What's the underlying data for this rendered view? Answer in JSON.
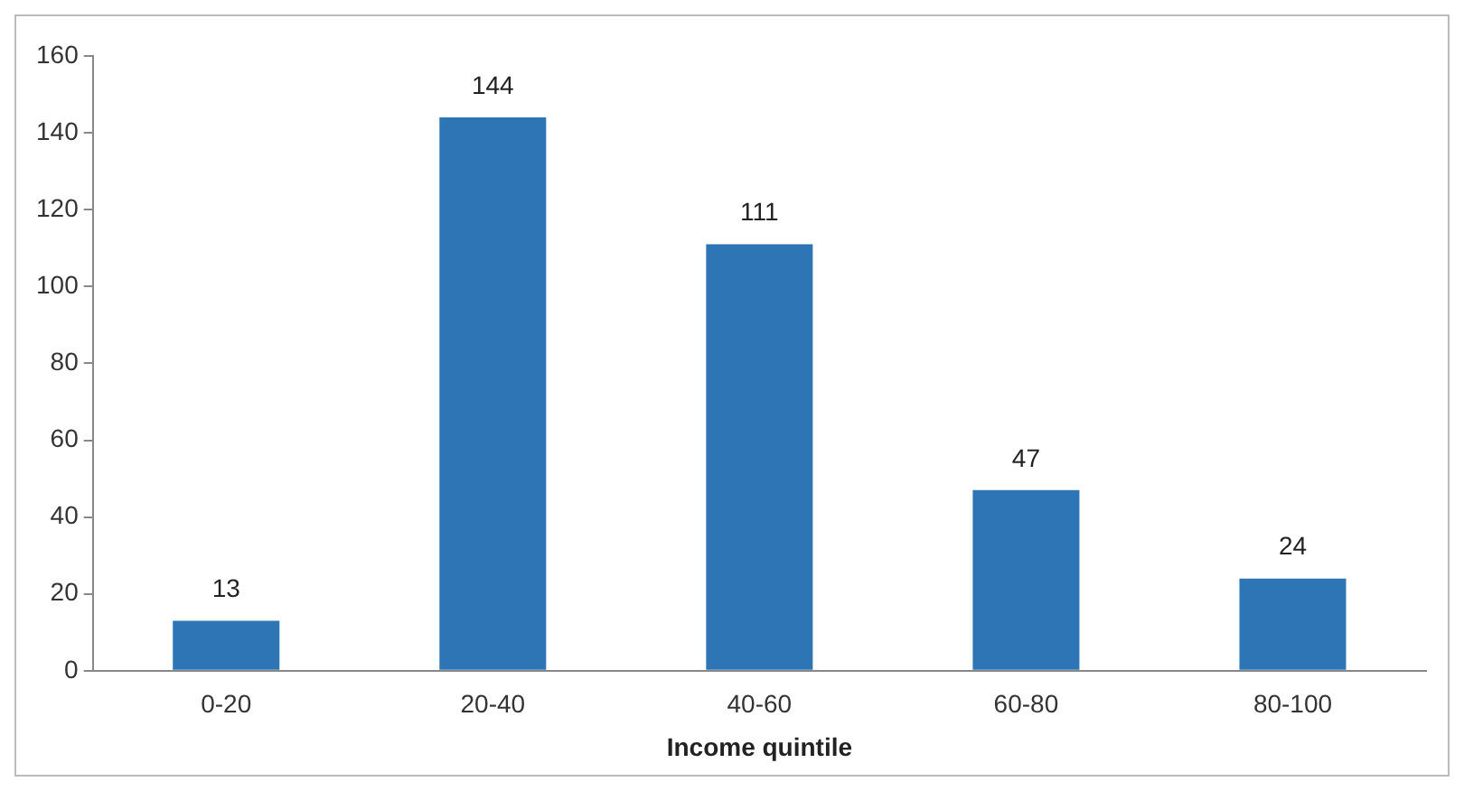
{
  "chart_data": {
    "type": "bar",
    "xlabel": "Income quintile",
    "categories": [
      "0-20",
      "20-40",
      "40-60",
      "60-80",
      "80-100"
    ],
    "values": [
      13,
      144,
      111,
      47,
      24
    ],
    "color": "#2e75b6",
    "ylim": [
      0,
      160
    ],
    "yticks": [
      0,
      20,
      40,
      60,
      80,
      100,
      120,
      140,
      160
    ],
    "grid": false,
    "legend": false,
    "data_labels": true
  }
}
